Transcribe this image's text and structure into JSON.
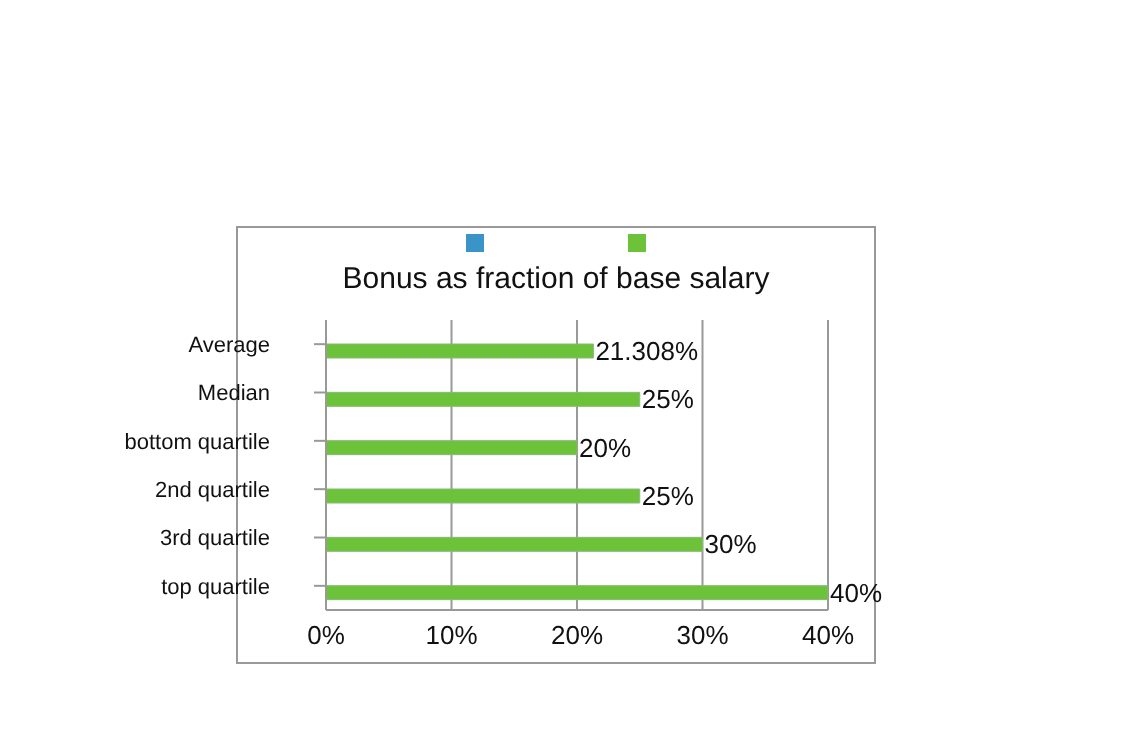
{
  "chart_data": {
    "type": "bar",
    "orientation": "horizontal",
    "title": "Bonus as fraction of base salary",
    "categories": [
      "Average",
      "Median",
      "bottom quartile",
      "2nd quartile",
      "3rd quartile",
      "top quartile"
    ],
    "series": [
      {
        "color": "#3a94c8",
        "values": [
          null,
          null,
          null,
          null,
          null,
          null
        ]
      },
      {
        "color": "#6cc33a",
        "values": [
          21.308,
          25,
          20,
          25,
          30,
          40
        ],
        "value_labels": [
          "21.308%",
          "25%",
          "20%",
          "25%",
          "30%",
          "40%"
        ]
      }
    ],
    "xlim": [
      0,
      40
    ],
    "xticks": [
      {
        "value": 0,
        "label": "0%"
      },
      {
        "value": 10,
        "label": "10%"
      },
      {
        "value": 20,
        "label": "20%"
      },
      {
        "value": 30,
        "label": "30%"
      },
      {
        "value": 40,
        "label": "40%"
      }
    ],
    "grid": "x"
  }
}
